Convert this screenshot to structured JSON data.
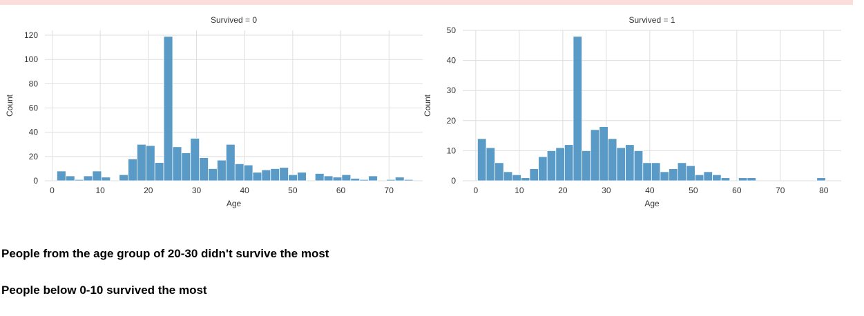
{
  "chart_data": [
    {
      "type": "bar",
      "title": "Survived = 0",
      "xlabel": "Age",
      "ylabel": "Count",
      "xlim": [
        -1.5,
        77
      ],
      "ylim": [
        0,
        124
      ],
      "xticks": [
        0,
        10,
        20,
        30,
        40,
        50,
        60,
        70
      ],
      "yticks": [
        0,
        20,
        40,
        60,
        80,
        100,
        120
      ],
      "grid": true,
      "bin_width": 1.85,
      "bin_start": 1.0,
      "values": [
        8,
        4,
        1,
        4,
        8,
        3,
        0,
        5,
        18,
        30,
        29,
        15,
        119,
        28,
        23,
        35,
        19,
        10,
        17,
        30,
        14,
        13,
        7,
        9,
        10,
        11,
        5,
        7,
        0,
        6,
        4,
        3,
        5,
        2,
        1,
        4,
        0,
        1,
        3,
        1
      ],
      "color": "#4c92c3"
    },
    {
      "type": "bar",
      "title": "Survived = 1",
      "xlabel": "Age",
      "ylabel": "Count",
      "xlim": [
        -3,
        84
      ],
      "ylim": [
        0,
        50
      ],
      "xticks": [
        0,
        10,
        20,
        30,
        40,
        50,
        60,
        70,
        80
      ],
      "yticks": [
        0,
        10,
        20,
        30,
        40,
        50
      ],
      "grid": true,
      "bin_width": 2.0,
      "bin_start": 0.4,
      "values": [
        14,
        11,
        6,
        3,
        2,
        1,
        4,
        8,
        10,
        11,
        12,
        48,
        10,
        17,
        18,
        14,
        11,
        12,
        10,
        6,
        6,
        3,
        4,
        6,
        5,
        2,
        3,
        2,
        1,
        0,
        1,
        1,
        0,
        0,
        0,
        0,
        0,
        0,
        0,
        1
      ],
      "color": "#4c92c3"
    }
  ],
  "notes": {
    "line1": "People from the age group of 20-30 didn't survive the most",
    "line2": "People below 0-10 survived the most"
  }
}
